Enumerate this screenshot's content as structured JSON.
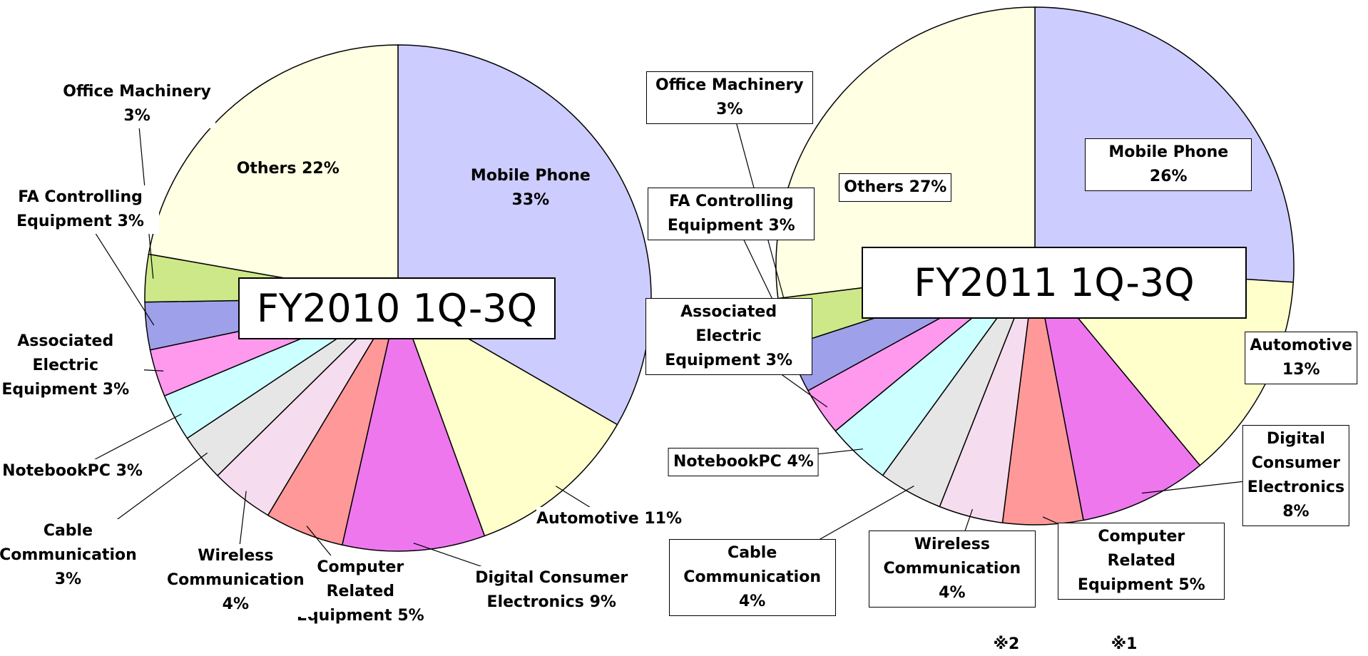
{
  "chart_data": [
    {
      "type": "pie",
      "title": "FY2010 1Q-3Q",
      "categories": [
        "Mobile Phone",
        "Automotive",
        "Digital Consumer Electronics",
        "Computer Related Equipment",
        "Wireless Communication",
        "Cable Communication",
        "NotebookPC",
        "Associated Electric Equipment",
        "FA Controlling Equipment",
        "Office Machinery",
        "Others"
      ],
      "values": [
        33,
        11,
        9,
        5,
        4,
        3,
        3,
        3,
        3,
        3,
        22
      ],
      "value_labels": [
        "33%",
        "11%",
        "9%",
        "5%",
        "4%",
        "3%",
        "3%",
        "3%",
        "3%",
        "3%",
        "22%"
      ],
      "colors": [
        "#ccccff",
        "#ffffcc",
        "#ee77ee",
        "#ff9999",
        "#f6dcef",
        "#e6e6e6",
        "#ccffff",
        "#ff99ee",
        "#9fa0ea",
        "#cce888",
        "#ffffe3"
      ]
    },
    {
      "type": "pie",
      "title": "FY2011 1Q-3Q",
      "categories": [
        "Mobile Phone",
        "Automotive",
        "Digital Consumer Electronics",
        "Computer Related Equipment",
        "Wireless Communication",
        "Cable Communication",
        "NotebookPC",
        "Associated Electric Equipment",
        "FA Controlling Equipment",
        "Office Machinery",
        "Others"
      ],
      "values": [
        26,
        13,
        8,
        5,
        4,
        4,
        4,
        3,
        3,
        3,
        27
      ],
      "value_labels": [
        "26%",
        "13%",
        "8%",
        "5%",
        "4%",
        "4%",
        "4%",
        "3%",
        "3%",
        "3%",
        "27%"
      ],
      "colors": [
        "#ccccff",
        "#ffffcc",
        "#ee77ee",
        "#ff9999",
        "#f6dcef",
        "#e6e6e6",
        "#ccffff",
        "#ff99ee",
        "#9fa0ea",
        "#cce888",
        "#ffffe3"
      ],
      "annotations": [
        "※2",
        "※1"
      ]
    }
  ]
}
